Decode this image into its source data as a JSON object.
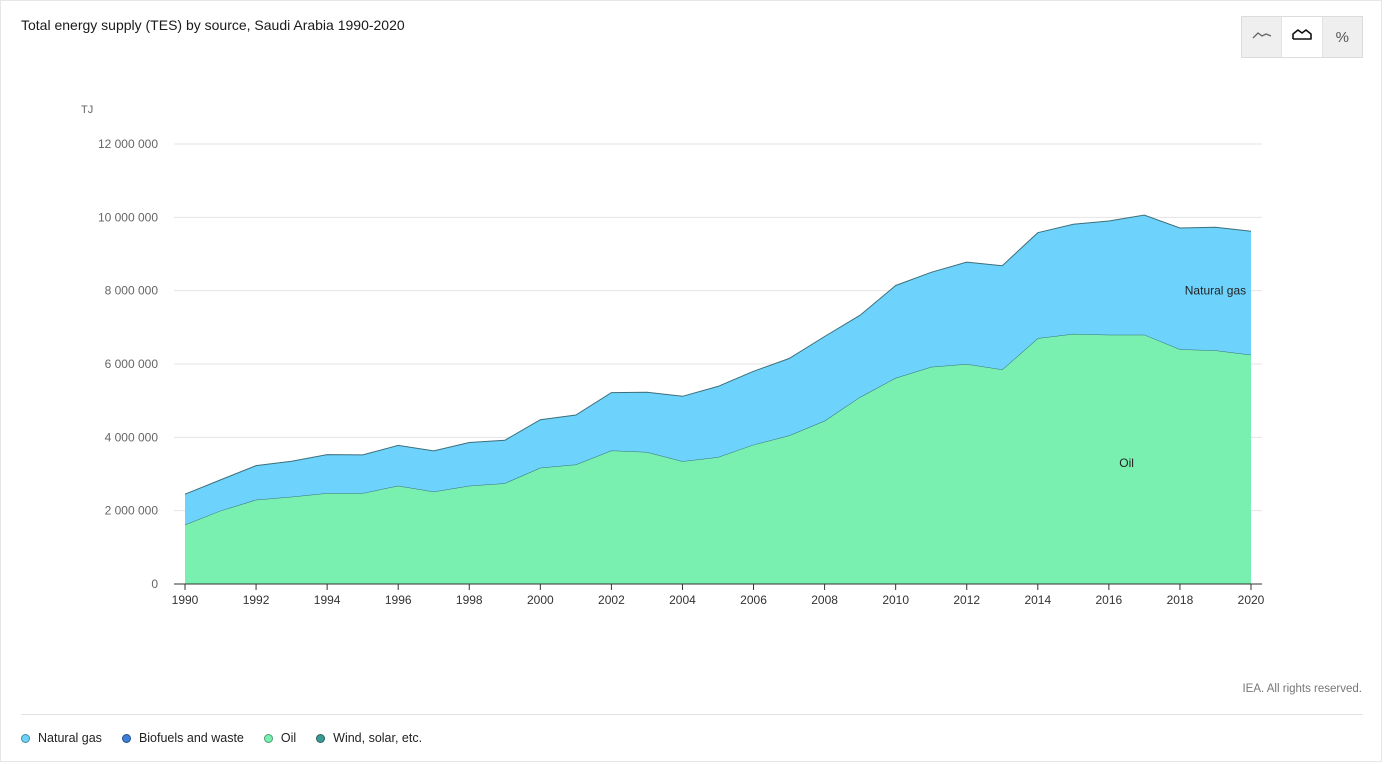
{
  "title": "Total energy supply (TES) by source, Saudi Arabia 1990-2020",
  "view_toggle": [
    {
      "name": "line-view",
      "icon": "line-chart-icon",
      "active": false
    },
    {
      "name": "area-view",
      "icon": "area-chart-icon",
      "active": true
    },
    {
      "name": "percent-view",
      "icon": "percent-icon",
      "label": "%",
      "active": false
    }
  ],
  "copyright": "IEA. All rights reserved.",
  "legend": [
    {
      "label": "Natural gas",
      "color": "#6dd3fc"
    },
    {
      "label": "Biofuels and waste",
      "color": "#3a7fd5"
    },
    {
      "label": "Oil",
      "color": "#79f0b0"
    },
    {
      "label": "Wind, solar, etc.",
      "color": "#3a9a94"
    }
  ],
  "chart_data": {
    "type": "area",
    "stacked": true,
    "title": "Total energy supply (TES) by source, Saudi Arabia 1990-2020",
    "ylabel": "TJ",
    "xlabel": "",
    "ylim": [
      0,
      12000000
    ],
    "yticks": [
      0,
      2000000,
      4000000,
      6000000,
      8000000,
      10000000,
      12000000
    ],
    "ytick_labels": [
      "0",
      "2 000 000",
      "4 000 000",
      "6 000 000",
      "8 000 000",
      "10 000 000",
      "12 000 000"
    ],
    "xticks": [
      1990,
      1992,
      1994,
      1996,
      1998,
      2000,
      2002,
      2004,
      2006,
      2008,
      2010,
      2012,
      2014,
      2016,
      2018,
      2020
    ],
    "x": [
      1990,
      1991,
      1992,
      1993,
      1994,
      1995,
      1996,
      1997,
      1998,
      1999,
      2000,
      2001,
      2002,
      2003,
      2004,
      2005,
      2006,
      2007,
      2008,
      2009,
      2010,
      2011,
      2012,
      2013,
      2014,
      2015,
      2016,
      2017,
      2018,
      2019,
      2020
    ],
    "grid": true,
    "series": [
      {
        "name": "Oil",
        "color": "#79f0b0",
        "values": [
          1620000,
          2000000,
          2300000,
          2380000,
          2480000,
          2480000,
          2680000,
          2520000,
          2680000,
          2750000,
          3170000,
          3260000,
          3640000,
          3600000,
          3350000,
          3460000,
          3800000,
          4050000,
          4450000,
          5100000,
          5620000,
          5920000,
          6000000,
          5850000,
          6700000,
          6820000,
          6800000,
          6800000,
          6400000,
          6370000,
          6250000
        ]
      },
      {
        "name": "Natural gas",
        "color": "#6dd3fc",
        "values": [
          830000,
          840000,
          930000,
          970000,
          1050000,
          1040000,
          1100000,
          1110000,
          1180000,
          1170000,
          1310000,
          1350000,
          1580000,
          1630000,
          1770000,
          1930000,
          2000000,
          2100000,
          2300000,
          2230000,
          2520000,
          2580000,
          2780000,
          2830000,
          2880000,
          2990000,
          3100000,
          3260000,
          3310000,
          3360000,
          3370000
        ]
      }
    ],
    "annotations": [
      {
        "text": "Natural gas",
        "series": "Natural gas",
        "x": 2019,
        "y": 8000000
      },
      {
        "text": "Oil",
        "series": "Oil",
        "x": 2016.5,
        "y": 3300000
      }
    ]
  }
}
